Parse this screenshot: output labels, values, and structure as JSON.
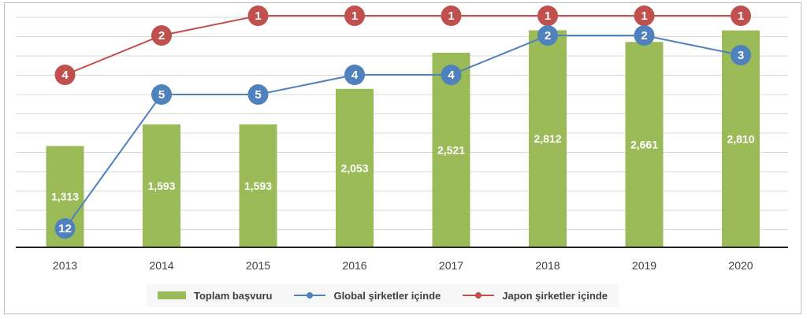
{
  "chart_data": {
    "type": "bar",
    "categories": [
      "2013",
      "2014",
      "2015",
      "2016",
      "2017",
      "2018",
      "2019",
      "2020"
    ],
    "series": [
      {
        "name": "Toplam başvuru",
        "type": "bar",
        "color": "#9bbb59",
        "values": [
          1313,
          1593,
          1593,
          2053,
          2521,
          2812,
          2661,
          2810
        ],
        "labels": [
          "1,313",
          "1,593",
          "1,593",
          "2,053",
          "2,521",
          "2,812",
          "2,661",
          "2,810"
        ]
      },
      {
        "name": "Global şirketler içinde",
        "type": "line-rank",
        "color": "#4f81bd",
        "values": [
          12,
          5,
          5,
          4,
          4,
          2,
          2,
          3
        ]
      },
      {
        "name": "Japon şirketler içinde",
        "type": "line-rank",
        "color": "#c0504d",
        "values": [
          4,
          2,
          1,
          1,
          1,
          1,
          1,
          1
        ]
      }
    ],
    "grid": true,
    "legend_position": "bottom"
  },
  "legend": {
    "bar_label": "Toplam başvuru",
    "global_label": "Global şirketler içinde",
    "japan_label": "Japon şirketler içinde"
  }
}
